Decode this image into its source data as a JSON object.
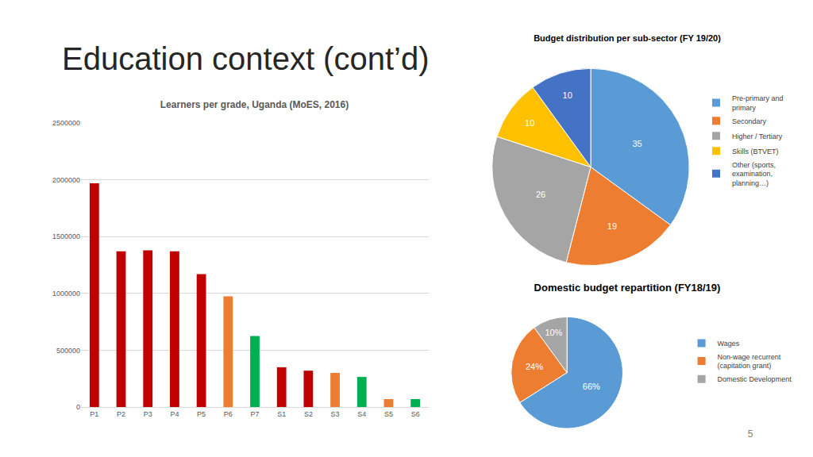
{
  "slide": {
    "title": "Education context (cont’d)",
    "page_number": 5
  },
  "chart_data": [
    {
      "type": "bar",
      "title": "Learners per grade, Uganda (MoES, 2016)",
      "categories": [
        "P1",
        "P2",
        "P3",
        "P4",
        "P5",
        "P6",
        "P7",
        "S1",
        "S2",
        "S3",
        "S4",
        "S5",
        "S6"
      ],
      "values": [
        1970000,
        1370000,
        1380000,
        1370000,
        1170000,
        975000,
        625000,
        350000,
        320000,
        300000,
        265000,
        70000,
        70000
      ],
      "colors": [
        "#c00000",
        "#c00000",
        "#c00000",
        "#c00000",
        "#c00000",
        "#ed7d31",
        "#00b050",
        "#c00000",
        "#c00000",
        "#ed7d31",
        "#00b050",
        "#ed7d31",
        "#00b050"
      ],
      "ylim": [
        0,
        2500000
      ],
      "yticks": [
        0,
        500000,
        1000000,
        1500000,
        2000000,
        2500000
      ],
      "grid": true
    },
    {
      "type": "pie",
      "title": "Budget distribution per sub-sector (FY 19/20)",
      "categories": [
        "Pre-primary and primary",
        "Secondary",
        "Higher / Tertiary",
        "Skills (BTVET)",
        "Other (sports, examination, planning…)"
      ],
      "values": [
        35,
        19,
        26,
        10,
        10
      ],
      "colors": [
        "#5b9bd5",
        "#ed7d31",
        "#a5a5a5",
        "#ffc000",
        "#4472c4"
      ],
      "data_labels": true,
      "legend": "right"
    },
    {
      "type": "pie",
      "title": "Domestic budget repartition (FY18/19)",
      "categories": [
        "Wages",
        "Non-wage recurrent (capitation grant)",
        "Domestic Development"
      ],
      "values": [
        66,
        24,
        10
      ],
      "value_labels": [
        "66%",
        "24%",
        "10%"
      ],
      "colors": [
        "#5b9bd5",
        "#ed7d31",
        "#a5a5a5"
      ],
      "data_labels": true,
      "legend": "right"
    }
  ]
}
